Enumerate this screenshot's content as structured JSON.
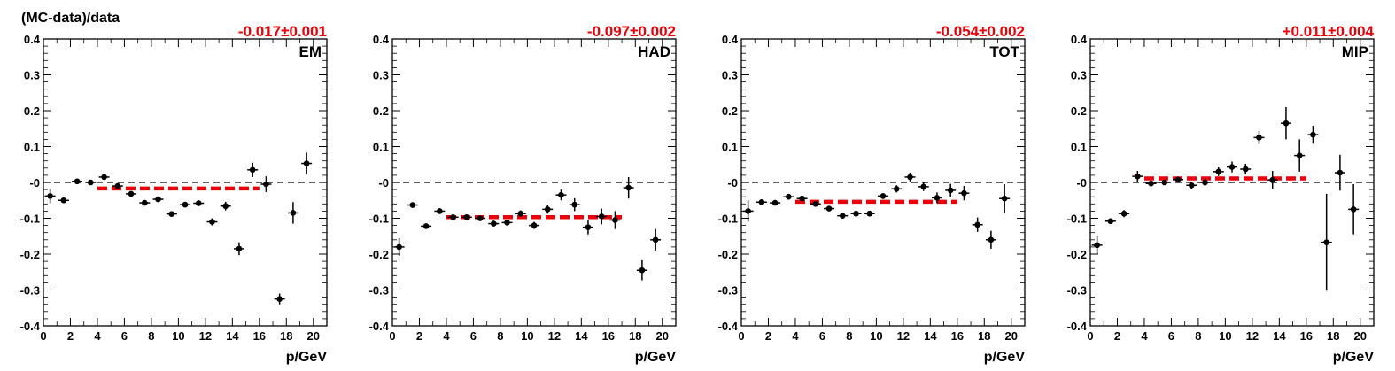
{
  "figure": {
    "ylabel": "(MC-data)/data",
    "xlabel": "p/GeV",
    "colors": {
      "points": "#000000",
      "fit": "#e8000b",
      "fit_text": "#e8000b",
      "zero_line": "#000000"
    }
  },
  "chart_data": [
    {
      "type": "scatter",
      "label": "EM",
      "fit_text": "-0.017±0.001",
      "fit": {
        "value": -0.017,
        "x_range": [
          4,
          16
        ]
      },
      "xlim": [
        0,
        21
      ],
      "ylim": [
        -0.4,
        0.4
      ],
      "xticks": [
        0,
        2,
        4,
        6,
        8,
        10,
        12,
        14,
        16,
        18,
        20
      ],
      "yticks": [
        -0.4,
        -0.3,
        -0.2,
        -0.1,
        0,
        0.1,
        0.2,
        0.3,
        0.4
      ],
      "ytick_labels": [
        "-0.4",
        "-0.3",
        "-0.2",
        "-0.1",
        "-0",
        "0.1",
        "0.2",
        "0.3",
        "0.4"
      ],
      "points": [
        {
          "x": 0.5,
          "y": -0.038,
          "err": 0.02
        },
        {
          "x": 1.5,
          "y": -0.05,
          "err": 0.006
        },
        {
          "x": 2.5,
          "y": 0.003,
          "err": 0.004
        },
        {
          "x": 3.5,
          "y": 0.0,
          "err": 0.004
        },
        {
          "x": 4.5,
          "y": 0.015,
          "err": 0.006
        },
        {
          "x": 5.5,
          "y": -0.01,
          "err": 0.006
        },
        {
          "x": 6.5,
          "y": -0.032,
          "err": 0.005
        },
        {
          "x": 7.5,
          "y": -0.057,
          "err": 0.006
        },
        {
          "x": 8.5,
          "y": -0.047,
          "err": 0.006
        },
        {
          "x": 9.5,
          "y": -0.088,
          "err": 0.006
        },
        {
          "x": 10.5,
          "y": -0.062,
          "err": 0.007
        },
        {
          "x": 11.5,
          "y": -0.058,
          "err": 0.008
        },
        {
          "x": 12.5,
          "y": -0.11,
          "err": 0.01
        },
        {
          "x": 13.5,
          "y": -0.066,
          "err": 0.012
        },
        {
          "x": 14.5,
          "y": -0.185,
          "err": 0.018
        },
        {
          "x": 15.5,
          "y": 0.035,
          "err": 0.02
        },
        {
          "x": 16.5,
          "y": -0.005,
          "err": 0.022
        },
        {
          "x": 17.5,
          "y": -0.325,
          "err": 0.015
        },
        {
          "x": 18.5,
          "y": -0.085,
          "err": 0.03
        },
        {
          "x": 19.5,
          "y": 0.053,
          "err": 0.03
        }
      ]
    },
    {
      "type": "scatter",
      "label": "HAD",
      "fit_text": "-0.097±0.002",
      "fit": {
        "value": -0.097,
        "x_range": [
          4,
          17
        ]
      },
      "xlim": [
        0,
        21
      ],
      "ylim": [
        -0.4,
        0.4
      ],
      "xticks": [
        0,
        2,
        4,
        6,
        8,
        10,
        12,
        14,
        16,
        18,
        20
      ],
      "yticks": [
        -0.4,
        -0.3,
        -0.2,
        -0.1,
        0,
        0.1,
        0.2,
        0.3,
        0.4
      ],
      "ytick_labels": [
        "-0.4",
        "-0.3",
        "-0.2",
        "-0.1",
        "-0",
        "0.1",
        "0.2",
        "0.3",
        "0.4"
      ],
      "points": [
        {
          "x": 0.5,
          "y": -0.18,
          "err": 0.025
        },
        {
          "x": 1.5,
          "y": -0.063,
          "err": 0.006
        },
        {
          "x": 2.5,
          "y": -0.122,
          "err": 0.006
        },
        {
          "x": 3.5,
          "y": -0.08,
          "err": 0.008
        },
        {
          "x": 4.5,
          "y": -0.097,
          "err": 0.006
        },
        {
          "x": 5.5,
          "y": -0.097,
          "err": 0.006
        },
        {
          "x": 6.5,
          "y": -0.1,
          "err": 0.006
        },
        {
          "x": 7.5,
          "y": -0.115,
          "err": 0.007
        },
        {
          "x": 8.5,
          "y": -0.112,
          "err": 0.008
        },
        {
          "x": 9.5,
          "y": -0.087,
          "err": 0.009
        },
        {
          "x": 10.5,
          "y": -0.12,
          "err": 0.01
        },
        {
          "x": 11.5,
          "y": -0.075,
          "err": 0.012
        },
        {
          "x": 12.5,
          "y": -0.035,
          "err": 0.015
        },
        {
          "x": 13.5,
          "y": -0.062,
          "err": 0.018
        },
        {
          "x": 14.5,
          "y": -0.125,
          "err": 0.02
        },
        {
          "x": 15.5,
          "y": -0.095,
          "err": 0.022
        },
        {
          "x": 16.5,
          "y": -0.105,
          "err": 0.025
        },
        {
          "x": 17.5,
          "y": -0.015,
          "err": 0.03
        },
        {
          "x": 18.5,
          "y": -0.245,
          "err": 0.028
        },
        {
          "x": 19.5,
          "y": -0.16,
          "err": 0.03
        }
      ]
    },
    {
      "type": "scatter",
      "label": "TOT",
      "fit_text": "-0.054±0.002",
      "fit": {
        "value": -0.054,
        "x_range": [
          4,
          16
        ]
      },
      "xlim": [
        0,
        21
      ],
      "ylim": [
        -0.4,
        0.4
      ],
      "xticks": [
        0,
        2,
        4,
        6,
        8,
        10,
        12,
        14,
        16,
        18,
        20
      ],
      "yticks": [
        -0.4,
        -0.3,
        -0.2,
        -0.1,
        0,
        0.1,
        0.2,
        0.3,
        0.4
      ],
      "ytick_labels": [
        "-0.4",
        "-0.3",
        "-0.2",
        "-0.1",
        "-0",
        "0.1",
        "0.2",
        "0.3",
        "0.4"
      ],
      "points": [
        {
          "x": 0.5,
          "y": -0.08,
          "err": 0.03
        },
        {
          "x": 1.5,
          "y": -0.055,
          "err": 0.006
        },
        {
          "x": 2.5,
          "y": -0.057,
          "err": 0.006
        },
        {
          "x": 3.5,
          "y": -0.04,
          "err": 0.008
        },
        {
          "x": 4.5,
          "y": -0.045,
          "err": 0.006
        },
        {
          "x": 5.5,
          "y": -0.06,
          "err": 0.006
        },
        {
          "x": 6.5,
          "y": -0.073,
          "err": 0.006
        },
        {
          "x": 7.5,
          "y": -0.093,
          "err": 0.006
        },
        {
          "x": 8.5,
          "y": -0.087,
          "err": 0.007
        },
        {
          "x": 9.5,
          "y": -0.087,
          "err": 0.008
        },
        {
          "x": 10.5,
          "y": -0.038,
          "err": 0.008
        },
        {
          "x": 11.5,
          "y": -0.018,
          "err": 0.01
        },
        {
          "x": 12.5,
          "y": 0.015,
          "err": 0.012
        },
        {
          "x": 13.5,
          "y": -0.012,
          "err": 0.012
        },
        {
          "x": 14.5,
          "y": -0.043,
          "err": 0.015
        },
        {
          "x": 15.5,
          "y": -0.022,
          "err": 0.018
        },
        {
          "x": 16.5,
          "y": -0.03,
          "err": 0.02
        },
        {
          "x": 17.5,
          "y": -0.118,
          "err": 0.02
        },
        {
          "x": 18.5,
          "y": -0.16,
          "err": 0.025
        },
        {
          "x": 19.5,
          "y": -0.045,
          "err": 0.04
        }
      ]
    },
    {
      "type": "scatter",
      "label": "MIP",
      "fit_text": "+0.011±0.004",
      "fit": {
        "value": 0.011,
        "x_range": [
          4,
          16
        ]
      },
      "xlim": [
        0,
        21
      ],
      "ylim": [
        -0.4,
        0.4
      ],
      "xticks": [
        0,
        2,
        4,
        6,
        8,
        10,
        12,
        14,
        16,
        18,
        20
      ],
      "yticks": [
        -0.4,
        -0.3,
        -0.2,
        -0.1,
        0,
        0.1,
        0.2,
        0.3,
        0.4
      ],
      "ytick_labels": [
        "-0.4",
        "-0.3",
        "-0.2",
        "-0.1",
        "-0",
        "0.1",
        "0.2",
        "0.3",
        "0.4"
      ],
      "points": [
        {
          "x": 0.5,
          "y": -0.175,
          "err": 0.025
        },
        {
          "x": 1.5,
          "y": -0.108,
          "err": 0.008
        },
        {
          "x": 2.5,
          "y": -0.087,
          "err": 0.01
        },
        {
          "x": 3.5,
          "y": 0.017,
          "err": 0.015
        },
        {
          "x": 4.5,
          "y": -0.003,
          "err": 0.008
        },
        {
          "x": 5.5,
          "y": 0.0,
          "err": 0.006
        },
        {
          "x": 6.5,
          "y": 0.008,
          "err": 0.008
        },
        {
          "x": 7.5,
          "y": -0.008,
          "err": 0.01
        },
        {
          "x": 8.5,
          "y": 0.0,
          "err": 0.01
        },
        {
          "x": 9.5,
          "y": 0.03,
          "err": 0.012
        },
        {
          "x": 10.5,
          "y": 0.043,
          "err": 0.015
        },
        {
          "x": 11.5,
          "y": 0.037,
          "err": 0.015
        },
        {
          "x": 12.5,
          "y": 0.125,
          "err": 0.018
        },
        {
          "x": 13.5,
          "y": 0.007,
          "err": 0.025
        },
        {
          "x": 14.5,
          "y": 0.165,
          "err": 0.045
        },
        {
          "x": 15.5,
          "y": 0.075,
          "err": 0.045
        },
        {
          "x": 16.5,
          "y": 0.133,
          "err": 0.025
        },
        {
          "x": 17.5,
          "y": -0.167,
          "err": 0.135
        },
        {
          "x": 18.5,
          "y": 0.027,
          "err": 0.05
        },
        {
          "x": 19.5,
          "y": -0.075,
          "err": 0.07
        }
      ]
    }
  ]
}
